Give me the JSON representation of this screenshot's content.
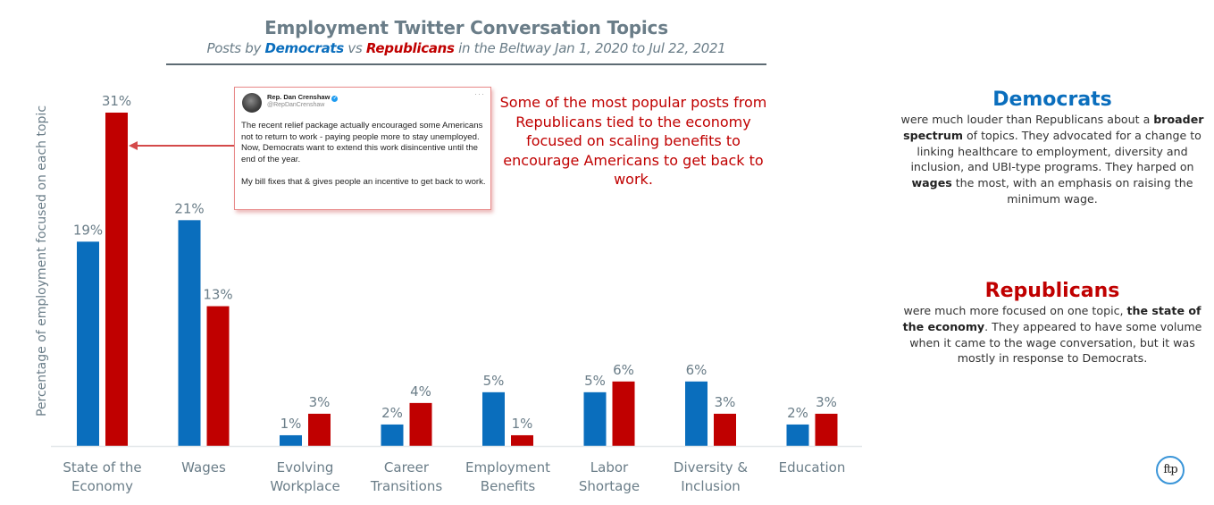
{
  "header": {
    "title": "Employment Twitter Conversation Topics",
    "subtitle_prefix": "Posts by ",
    "subtitle_dem": "Democrats",
    "subtitle_vs": " vs ",
    "subtitle_rep": "Republicans",
    "subtitle_suffix": " in the Beltway Jan 1, 2020 to Jul 22, 2021"
  },
  "colors": {
    "democrats": "#0a6ebd",
    "republicans": "#c00000",
    "axis_text": "#6a7d88"
  },
  "chart_data": {
    "type": "bar",
    "title": "Employment Twitter Conversation Topics",
    "subtitle": "Posts by Democrats vs Republicans in the Beltway Jan 1, 2020 to Jul 22, 2021",
    "xlabel": "",
    "ylabel": "Percentage of employment focused on each topic",
    "ylim": [
      0,
      31
    ],
    "grid": false,
    "legend": "none (parties identified in subtitle and side panel)",
    "categories": [
      [
        "State of the",
        "Economy"
      ],
      [
        "Wages"
      ],
      [
        "Evolving",
        "Workplace"
      ],
      [
        "Career",
        "Transitions"
      ],
      [
        "Employment",
        "Benefits"
      ],
      [
        "Labor",
        "Shortage"
      ],
      [
        "Diversity &",
        "Inclusion"
      ],
      [
        "Education"
      ]
    ],
    "series": [
      {
        "name": "Democrats",
        "color": "#0a6ebd",
        "values": [
          19,
          21,
          1,
          2,
          5,
          5,
          6,
          2
        ],
        "labels": [
          "19%",
          "21%",
          "1%",
          "2%",
          "5%",
          "5%",
          "6%",
          "2%"
        ]
      },
      {
        "name": "Republicans",
        "color": "#c00000",
        "values": [
          31,
          13,
          3,
          4,
          1,
          6,
          3,
          3
        ],
        "labels": [
          "31%",
          "13%",
          "3%",
          "4%",
          "1%",
          "6%",
          "3%",
          "3%"
        ]
      }
    ]
  },
  "tweet": {
    "name": "Rep. Dan Crenshaw",
    "handle": "@RepDanCrenshaw",
    "more_icon": "···",
    "verified_icon": "✓",
    "body": "The recent relief package actually encouraged some Americans not to return to work - paying people more to stay unemployed. Now, Democrats want to extend this work disincentive until the end of the year.\n\nMy bill fixes that & gives people an incentive to get back to work."
  },
  "annotation": "Some of the most popular posts from Republicans tied to the economy focused on scaling benefits to encourage Americans to get back to work.",
  "side_panels": {
    "democrats": {
      "heading": "Democrats",
      "text_1": "were much louder than Republicans about a ",
      "bold_1": "broader spectrum",
      "text_2": " of topics. They advocated for a change to linking healthcare to employment, diversity and inclusion, and UBI-type programs. They harped on ",
      "bold_2": "wages",
      "text_3": " the most, with an emphasis on raising the minimum wage."
    },
    "republicans": {
      "heading": "Republicans",
      "text_1": "were much more focused on one topic, ",
      "bold_1": "the state of the economy",
      "text_2": ". They appeared to have some volume when it came to the wage conversation, but it was mostly in response to Democrats."
    }
  },
  "logo": {
    "text": "ftp"
  }
}
